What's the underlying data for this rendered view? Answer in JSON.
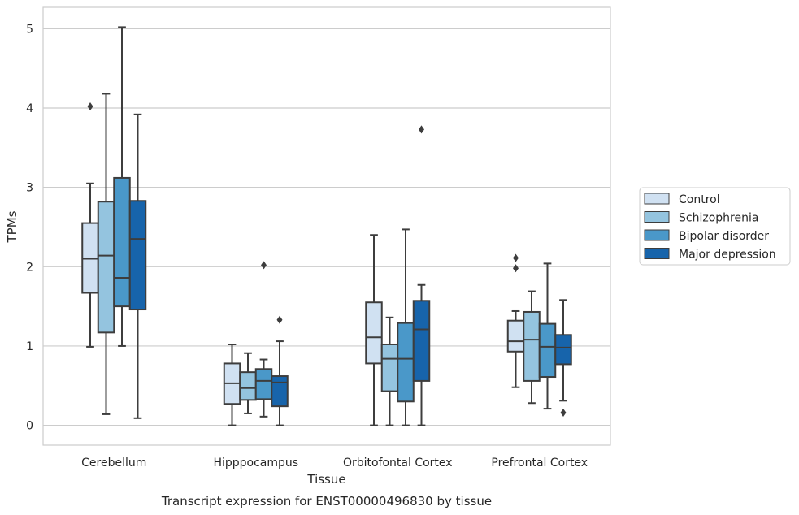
{
  "chart_data": {
    "type": "box",
    "xlabel": "Tissue",
    "ylabel": "TPMs",
    "caption": "Transcript expression for ENST00000496830 by tissue",
    "ylim": [
      -0.25,
      5.27
    ],
    "yticks": [
      0,
      1,
      2,
      3,
      4,
      5
    ],
    "grid": true,
    "legend_position": "right",
    "categories": [
      "Cerebellum",
      "Hipppocampus",
      "Orbitofontal Cortex",
      "Prefrontal Cortex"
    ],
    "series": [
      {
        "name": "Control",
        "color": "#d0e1f2",
        "boxes": [
          {
            "whisker_low": 0.99,
            "q1": 1.67,
            "median": 2.1,
            "q3": 2.55,
            "whisker_high": 3.05,
            "outliers": [
              4.02
            ]
          },
          {
            "whisker_low": 0.0,
            "q1": 0.27,
            "median": 0.53,
            "q3": 0.78,
            "whisker_high": 1.02,
            "outliers": []
          },
          {
            "whisker_low": 0.0,
            "q1": 0.78,
            "median": 1.11,
            "q3": 1.55,
            "whisker_high": 2.4,
            "outliers": []
          },
          {
            "whisker_low": 0.48,
            "q1": 0.93,
            "median": 1.06,
            "q3": 1.32,
            "whisker_high": 1.44,
            "outliers": [
              1.98,
              2.11
            ]
          }
        ]
      },
      {
        "name": "Schizophrenia",
        "color": "#94c4df",
        "boxes": [
          {
            "whisker_low": 0.14,
            "q1": 1.17,
            "median": 2.14,
            "q3": 2.82,
            "whisker_high": 4.18,
            "outliers": []
          },
          {
            "whisker_low": 0.15,
            "q1": 0.32,
            "median": 0.47,
            "q3": 0.67,
            "whisker_high": 0.91,
            "outliers": []
          },
          {
            "whisker_low": 0.0,
            "q1": 0.43,
            "median": 0.84,
            "q3": 1.02,
            "whisker_high": 1.36,
            "outliers": []
          },
          {
            "whisker_low": 0.28,
            "q1": 0.56,
            "median": 1.08,
            "q3": 1.43,
            "whisker_high": 1.69,
            "outliers": []
          }
        ]
      },
      {
        "name": "Bipolar disorder",
        "color": "#4a98c9",
        "boxes": [
          {
            "whisker_low": 1.0,
            "q1": 1.5,
            "median": 1.86,
            "q3": 3.12,
            "whisker_high": 5.02,
            "outliers": []
          },
          {
            "whisker_low": 0.11,
            "q1": 0.33,
            "median": 0.56,
            "q3": 0.71,
            "whisker_high": 0.83,
            "outliers": [
              2.02
            ]
          },
          {
            "whisker_low": 0.0,
            "q1": 0.3,
            "median": 0.84,
            "q3": 1.29,
            "whisker_high": 2.47,
            "outliers": []
          },
          {
            "whisker_low": 0.21,
            "q1": 0.61,
            "median": 0.99,
            "q3": 1.28,
            "whisker_high": 2.04,
            "outliers": []
          }
        ]
      },
      {
        "name": "Major depression",
        "color": "#1764ab",
        "boxes": [
          {
            "whisker_low": 0.09,
            "q1": 1.46,
            "median": 2.35,
            "q3": 2.83,
            "whisker_high": 3.92,
            "outliers": []
          },
          {
            "whisker_low": 0.0,
            "q1": 0.24,
            "median": 0.54,
            "q3": 0.62,
            "whisker_high": 1.06,
            "outliers": [
              1.33
            ]
          },
          {
            "whisker_low": 0.0,
            "q1": 0.56,
            "median": 1.21,
            "q3": 1.57,
            "whisker_high": 1.77,
            "outliers": [
              3.73
            ]
          },
          {
            "whisker_low": 0.31,
            "q1": 0.77,
            "median": 0.98,
            "q3": 1.14,
            "whisker_high": 1.58,
            "outliers": [
              0.16
            ]
          }
        ]
      }
    ]
  }
}
